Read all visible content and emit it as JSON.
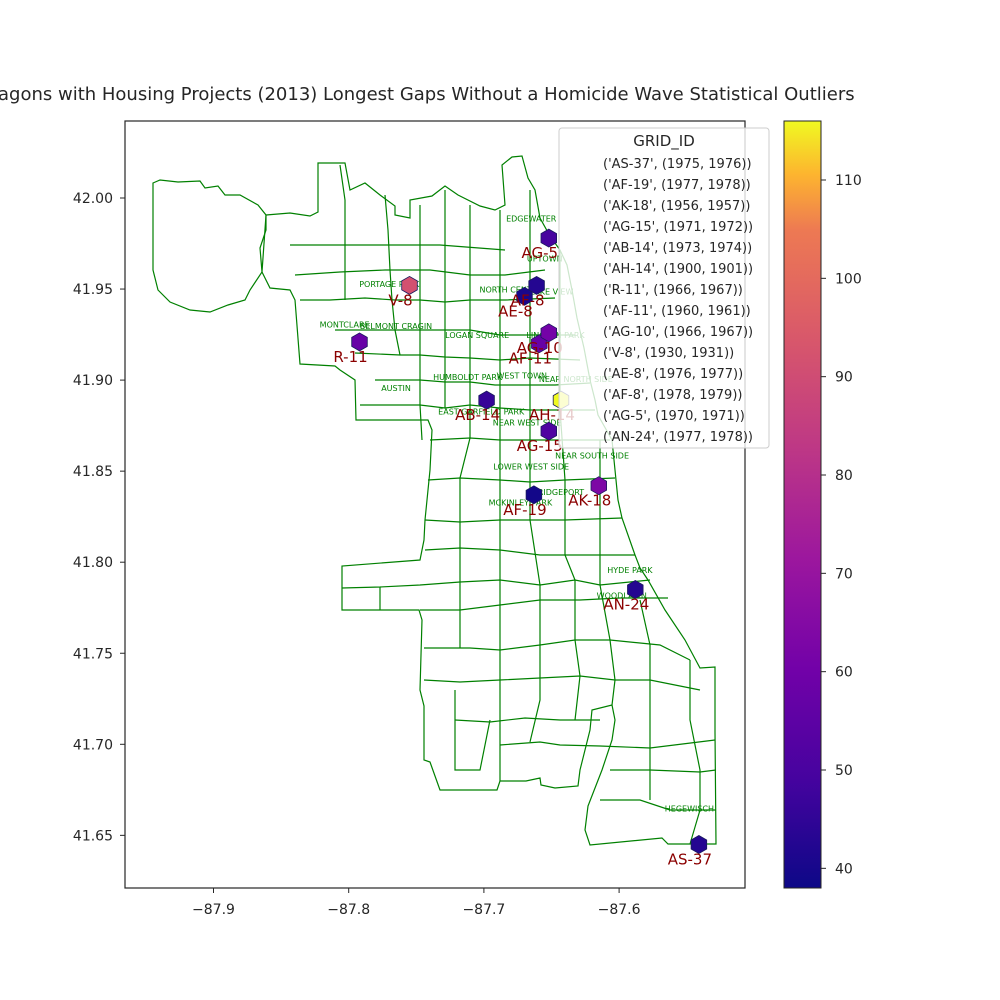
{
  "title": "agons with Housing Projects (2013) Longest Gaps Without a Homicide Wave Statistical Outliers",
  "colors": {
    "boundary": "#008000",
    "hex_label": "#8b0000",
    "nb_label": "#008000",
    "frame": "#262626"
  },
  "x_ticks": [
    "−87.9",
    "−87.8",
    "−87.7",
    "−87.6"
  ],
  "y_ticks": [
    "42.00",
    "41.95",
    "41.90",
    "41.85",
    "41.80",
    "41.75",
    "41.70",
    "41.65"
  ],
  "neighborhoods": [
    {
      "name": "EDGEWATER",
      "x": -87.665,
      "y": 41.987
    },
    {
      "name": "UPTOWN",
      "x": -87.655,
      "y": 41.965
    },
    {
      "name": "PORTAGE PARK",
      "x": -87.77,
      "y": 41.951
    },
    {
      "name": "NORTH CENTER",
      "x": -87.68,
      "y": 41.948
    },
    {
      "name": "LAKE VIEW",
      "x": -87.65,
      "y": 41.947
    },
    {
      "name": "MONTCLARE",
      "x": -87.803,
      "y": 41.929
    },
    {
      "name": "BELMONT CRAGIN",
      "x": -87.765,
      "y": 41.928
    },
    {
      "name": "LOGAN SQUARE",
      "x": -87.705,
      "y": 41.923
    },
    {
      "name": "LINCOLN PARK",
      "x": -87.647,
      "y": 41.923
    },
    {
      "name": "HUMBOLDT PARK",
      "x": -87.712,
      "y": 41.9
    },
    {
      "name": "WEST TOWN",
      "x": -87.672,
      "y": 41.901
    },
    {
      "name": "NEAR NORTH SIDE",
      "x": -87.632,
      "y": 41.899
    },
    {
      "name": "AUSTIN",
      "x": -87.765,
      "y": 41.894
    },
    {
      "name": "EAST GARFIELD PARK",
      "x": -87.702,
      "y": 41.881
    },
    {
      "name": "NEAR WEST SIDE",
      "x": -87.668,
      "y": 41.875
    },
    {
      "name": "NEAR SOUTH SIDE",
      "x": -87.62,
      "y": 41.857
    },
    {
      "name": "LOWER WEST SIDE",
      "x": -87.665,
      "y": 41.851
    },
    {
      "name": "BRIDGEPORT",
      "x": -87.645,
      "y": 41.837
    },
    {
      "name": "MCKINLEY PARK",
      "x": -87.673,
      "y": 41.831
    },
    {
      "name": "HYDE PARK",
      "x": -87.592,
      "y": 41.794
    },
    {
      "name": "WOODLAWN",
      "x": -87.598,
      "y": 41.78
    },
    {
      "name": "HEGEWISCH",
      "x": -87.548,
      "y": 41.663
    }
  ],
  "legend": {
    "title": "GRID_ID",
    "entries": [
      "('AS-37', (1975, 1976))",
      "('AF-19', (1977, 1978))",
      "('AK-18', (1956, 1957))",
      "('AG-15', (1971, 1972))",
      "('AB-14', (1973, 1974))",
      "('AH-14', (1900, 1901))",
      "('R-11', (1966, 1967))",
      "('AF-11', (1960, 1961))",
      "('AG-10', (1966, 1967))",
      "('V-8', (1930, 1931))",
      "('AE-8', (1976, 1977))",
      "('AF-8', (1978, 1979))",
      "('AG-5', (1970, 1971))",
      "('AN-24', (1977, 1978))"
    ]
  },
  "colorbar": {
    "min": 38,
    "max": 116,
    "ticks": [
      "40",
      "50",
      "60",
      "70",
      "80",
      "90",
      "100",
      "110"
    ],
    "tick_values": [
      40,
      50,
      60,
      70,
      80,
      90,
      100,
      110
    ]
  },
  "hexagons": [
    {
      "id": "AS-37",
      "x": -87.541,
      "y": 41.645,
      "value": 42
    },
    {
      "id": "AF-19",
      "x": -87.663,
      "y": 41.837,
      "value": 39
    },
    {
      "id": "AK-18",
      "x": -87.615,
      "y": 41.842,
      "value": 60
    },
    {
      "id": "AG-15",
      "x": -87.652,
      "y": 41.872,
      "value": 50
    },
    {
      "id": "AB-14",
      "x": -87.698,
      "y": 41.889,
      "value": 45
    },
    {
      "id": "AH-14",
      "x": -87.643,
      "y": 41.889,
      "value": 116
    },
    {
      "id": "R-11",
      "x": -87.792,
      "y": 41.921,
      "value": 55
    },
    {
      "id": "AF-11",
      "x": -87.659,
      "y": 41.92,
      "value": 55
    },
    {
      "id": "AG-10",
      "x": -87.652,
      "y": 41.926,
      "value": 58
    },
    {
      "id": "V-8",
      "x": -87.755,
      "y": 41.952,
      "value": 85
    },
    {
      "id": "AE-8",
      "x": -87.67,
      "y": 41.946,
      "value": 40
    },
    {
      "id": "AF-8",
      "x": -87.661,
      "y": 41.952,
      "value": 42
    },
    {
      "id": "AG-5",
      "x": -87.652,
      "y": 41.978,
      "value": 48
    },
    {
      "id": "AN-24",
      "x": -87.588,
      "y": 41.785,
      "value": 42
    }
  ]
}
